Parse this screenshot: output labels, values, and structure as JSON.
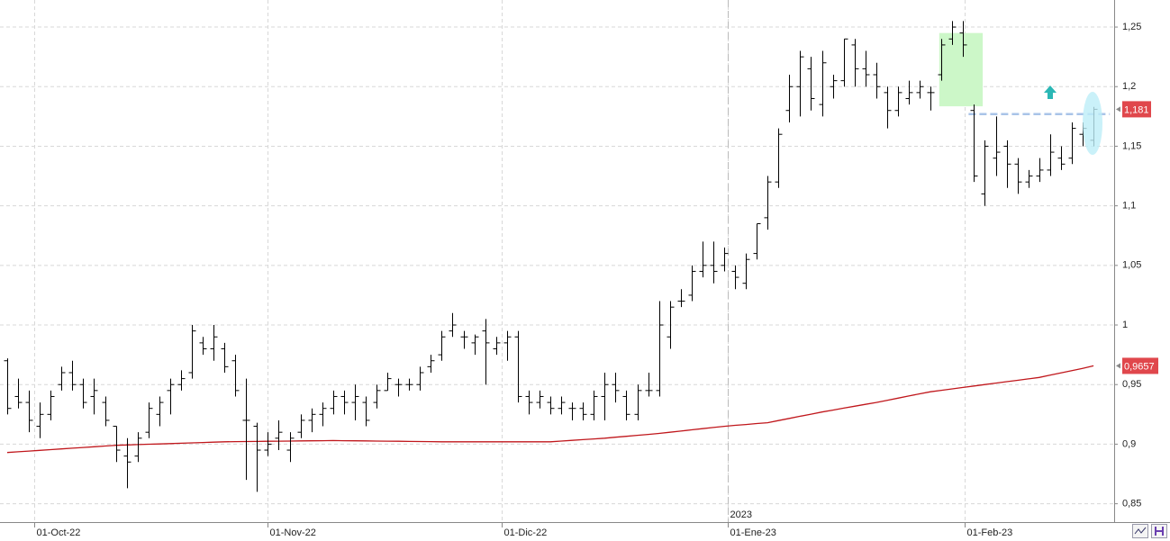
{
  "chart_data": {
    "type": "ohlc",
    "color": "#000000",
    "open": [
      0.97,
      0.94,
      0.935,
      0.915,
      0.925,
      0.95,
      0.96,
      0.95,
      0.94,
      0.935,
      0.915,
      0.89,
      0.89,
      0.91,
      0.925,
      0.945,
      0.95,
      0.96,
      0.985,
      0.98,
      0.98,
      0.97,
      0.92,
      0.915,
      0.895,
      0.905,
      0.895,
      0.91,
      0.92,
      0.925,
      0.93,
      0.94,
      0.935,
      0.935,
      0.935,
      0.945,
      0.95,
      0.95,
      0.95,
      0.965,
      0.975,
      0.995,
      0.99,
      0.985,
      0.995,
      0.98,
      0.985,
      0.99,
      0.94,
      0.935,
      0.935,
      0.93,
      0.93,
      0.93,
      0.925,
      0.94,
      0.95,
      0.94,
      0.925,
      0.945,
      0.945,
      0.99,
      1.02,
      1.025,
      1.045,
      1.05,
      1.05,
      1.045,
      1.035,
      1.06,
      1.09,
      1.12,
      1.18,
      1.2,
      1.215,
      1.185,
      1.2,
      1.205,
      1.235,
      1.215,
      1.21,
      1.195,
      1.18,
      1.19,
      1.195,
      1.195,
      1.21,
      1.24,
      1.245,
      1.18,
      1.11,
      1.14,
      1.15,
      1.135,
      1.12,
      1.125,
      1.13,
      1.14,
      1.14,
      1.16,
      1.155
    ],
    "high": [
      0.972,
      0.955,
      0.945,
      0.935,
      0.945,
      0.965,
      0.97,
      0.955,
      0.955,
      0.94,
      0.915,
      0.905,
      0.91,
      0.935,
      0.94,
      0.955,
      0.962,
      1.0,
      0.99,
      1.0,
      0.985,
      0.975,
      0.955,
      0.918,
      0.91,
      0.92,
      0.91,
      0.925,
      0.93,
      0.935,
      0.945,
      0.945,
      0.95,
      0.94,
      0.95,
      0.96,
      0.955,
      0.955,
      0.965,
      0.975,
      0.995,
      1.01,
      0.995,
      0.992,
      1.005,
      0.99,
      0.995,
      0.995,
      0.945,
      0.945,
      0.94,
      0.94,
      0.935,
      0.935,
      0.945,
      0.96,
      0.96,
      0.945,
      0.95,
      0.96,
      1.02,
      1.02,
      1.03,
      1.05,
      1.07,
      1.07,
      1.065,
      1.05,
      1.06,
      1.085,
      1.125,
      1.165,
      1.21,
      1.23,
      1.225,
      1.23,
      1.21,
      1.24,
      1.24,
      1.23,
      1.22,
      1.2,
      1.2,
      1.205,
      1.205,
      1.2,
      1.24,
      1.255,
      1.255,
      1.185,
      1.155,
      1.175,
      1.155,
      1.14,
      1.13,
      1.14,
      1.16,
      1.15,
      1.17,
      1.17,
      1.183
    ],
    "low": [
      0.925,
      0.93,
      0.91,
      0.905,
      0.92,
      0.945,
      0.945,
      0.93,
      0.925,
      0.915,
      0.885,
      0.863,
      0.885,
      0.905,
      0.915,
      0.925,
      0.945,
      0.955,
      0.975,
      0.97,
      0.96,
      0.94,
      0.87,
      0.86,
      0.89,
      0.895,
      0.885,
      0.905,
      0.91,
      0.915,
      0.925,
      0.925,
      0.92,
      0.915,
      0.93,
      0.945,
      0.94,
      0.945,
      0.945,
      0.96,
      0.97,
      0.99,
      0.98,
      0.975,
      0.95,
      0.975,
      0.97,
      0.935,
      0.925,
      0.93,
      0.925,
      0.925,
      0.92,
      0.92,
      0.92,
      0.92,
      0.935,
      0.92,
      0.92,
      0.94,
      0.94,
      0.98,
      1.015,
      1.02,
      1.04,
      1.035,
      1.045,
      1.03,
      1.03,
      1.055,
      1.08,
      1.115,
      1.17,
      1.175,
      1.18,
      1.175,
      1.19,
      1.2,
      1.2,
      1.2,
      1.19,
      1.165,
      1.175,
      1.185,
      1.19,
      1.18,
      1.205,
      1.235,
      1.225,
      1.12,
      1.1,
      1.125,
      1.115,
      1.11,
      1.115,
      1.12,
      1.125,
      1.13,
      1.135,
      1.15,
      1.15
    ],
    "close": [
      0.93,
      0.935,
      0.92,
      0.925,
      0.94,
      0.96,
      0.95,
      0.935,
      0.945,
      0.92,
      0.895,
      0.885,
      0.905,
      0.93,
      0.935,
      0.95,
      0.955,
      0.995,
      0.98,
      0.99,
      0.965,
      0.945,
      0.92,
      0.895,
      0.9,
      0.91,
      0.905,
      0.92,
      0.925,
      0.93,
      0.94,
      0.935,
      0.94,
      0.92,
      0.945,
      0.955,
      0.95,
      0.95,
      0.96,
      0.97,
      0.99,
      1.0,
      0.99,
      0.99,
      0.985,
      0.985,
      0.99,
      0.94,
      0.935,
      0.94,
      0.93,
      0.935,
      0.93,
      0.925,
      0.94,
      0.95,
      0.945,
      0.925,
      0.945,
      0.945,
      1.0,
      1.015,
      1.02,
      1.045,
      1.05,
      1.045,
      1.06,
      1.04,
      1.055,
      1.085,
      1.12,
      1.16,
      1.2,
      1.225,
      1.19,
      1.22,
      1.205,
      1.24,
      1.215,
      1.21,
      1.2,
      1.18,
      1.195,
      1.195,
      1.2,
      1.195,
      1.235,
      1.25,
      1.235,
      1.125,
      1.15,
      1.145,
      1.135,
      1.12,
      1.125,
      1.13,
      1.145,
      1.135,
      1.165,
      1.165,
      1.181
    ],
    "ma": {
      "color": "#c0171c",
      "values": [
        0.893,
        0.8936,
        0.8942,
        0.8948,
        0.8954,
        0.896,
        0.8966,
        0.8972,
        0.8978,
        0.8984,
        0.899,
        0.8993,
        0.8996,
        0.8999,
        0.9002,
        0.9005,
        0.9008,
        0.9011,
        0.9014,
        0.9017,
        0.902,
        0.9021,
        0.9022,
        0.9023,
        0.9024,
        0.9025,
        0.9026,
        0.9027,
        0.9028,
        0.9029,
        0.903,
        0.9029,
        0.9028,
        0.9027,
        0.9026,
        0.9025,
        0.9024,
        0.9023,
        0.9022,
        0.9021,
        0.902,
        0.902,
        0.902,
        0.902,
        0.902,
        0.902,
        0.902,
        0.902,
        0.902,
        0.902,
        0.902,
        0.9026,
        0.9032,
        0.9038,
        0.9044,
        0.905,
        0.9058,
        0.9066,
        0.9074,
        0.9082,
        0.909,
        0.91,
        0.911,
        0.912,
        0.913,
        0.914,
        0.915,
        0.9158,
        0.9165,
        0.9173,
        0.918,
        0.9198,
        0.9216,
        0.9234,
        0.9252,
        0.927,
        0.9286,
        0.9302,
        0.9318,
        0.9334,
        0.935,
        0.9368,
        0.9386,
        0.9404,
        0.9422,
        0.944,
        0.9452,
        0.9464,
        0.9476,
        0.9488,
        0.95,
        0.9512,
        0.9524,
        0.9536,
        0.9548,
        0.956,
        0.9579,
        0.9598,
        0.9617,
        0.9636,
        0.9657
      ]
    },
    "ylim": [
      0.8346,
      1.2727
    ],
    "yticks": [
      {
        "value": 0.85,
        "label": "0,85"
      },
      {
        "value": 0.9,
        "label": "0,9"
      },
      {
        "value": 0.95,
        "label": "0,95"
      },
      1,
      {
        "value": 1.05,
        "label": "1,05"
      },
      {
        "value": 1.1,
        "label": "1,1"
      },
      {
        "value": 1.15,
        "label": "1,15"
      },
      {
        "value": 1.2,
        "label": "1,2"
      },
      {
        "value": 1.25,
        "label": "1,25"
      }
    ],
    "xlim": [
      -0.66,
      101.9
    ],
    "xticks": [
      {
        "value": 2.5,
        "label": "01-Oct-22"
      },
      {
        "value": 24,
        "label": "01-Nov-22"
      },
      {
        "value": 45.5,
        "label": "01-Dic-22"
      },
      {
        "value": 66.3,
        "label": "01-Ene-23"
      },
      {
        "value": 88.1,
        "label": "01-Feb-23"
      }
    ],
    "year_marker": {
      "value": 66.3,
      "label": "2023"
    },
    "last_price": {
      "value": 1.181,
      "label": "1,181",
      "color": "#e0474c"
    },
    "ma_last": {
      "value": 0.9657,
      "label": "0,9657",
      "color": "#e0474c"
    },
    "zone": {
      "from": 85.8,
      "to": 89.8,
      "low": 1.1835,
      "high": 1.245,
      "color": "#ccf7c8"
    },
    "level": {
      "value": 1.177,
      "from": 88.5,
      "to": 101.5,
      "color": "#a9c4e8"
    },
    "grid": true
  }
}
